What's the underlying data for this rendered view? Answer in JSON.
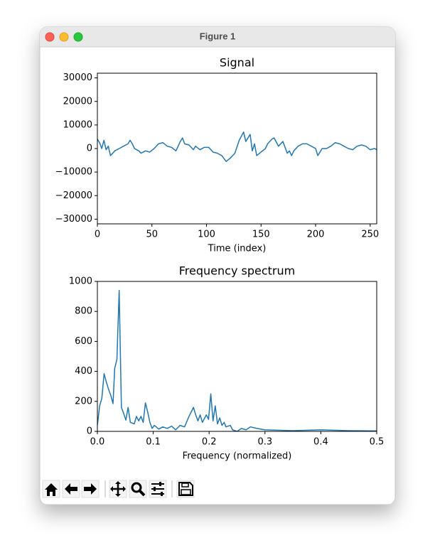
{
  "window": {
    "title": "Figure 1"
  },
  "chart_data": [
    {
      "type": "line",
      "title": "Signal",
      "x_label": "Time (index)",
      "color": "#1f77b4",
      "x": [
        0,
        2,
        4,
        6,
        8,
        10,
        12,
        16,
        20,
        24,
        28,
        30,
        32,
        34,
        38,
        40,
        44,
        48,
        52,
        56,
        60,
        64,
        68,
        72,
        76,
        78,
        80,
        84,
        88,
        90,
        94,
        98,
        102,
        106,
        110,
        114,
        118,
        122,
        126,
        130,
        134,
        136,
        140,
        142,
        144,
        146,
        150,
        154,
        156,
        160,
        162,
        166,
        170,
        174,
        176,
        178,
        180,
        184,
        188,
        192,
        196,
        200,
        202,
        206,
        210,
        214,
        218,
        222,
        226,
        230,
        234,
        238,
        242,
        246,
        250,
        254,
        256
      ],
      "values": [
        4000,
        2500,
        0,
        3500,
        -500,
        1000,
        -3000,
        -1000,
        0,
        1000,
        2000,
        3500,
        2000,
        0,
        -1000,
        -2000,
        -1000,
        -1500,
        0,
        2000,
        2500,
        1000,
        500,
        -1000,
        3000,
        4500,
        2000,
        1500,
        -500,
        1000,
        -500,
        500,
        500,
        -1500,
        -2000,
        -3000,
        -5500,
        -4000,
        -2000,
        3500,
        7000,
        3000,
        6000,
        -1000,
        2000,
        -3000,
        -1500,
        0,
        2000,
        4000,
        4500,
        1000,
        3000,
        -2000,
        -1000,
        -3000,
        -1000,
        1000,
        2000,
        2000,
        1000,
        0,
        -3000,
        0,
        0,
        1000,
        2500,
        2000,
        1000,
        0,
        -500,
        1000,
        1500,
        1000,
        -500,
        0,
        -500
      ],
      "xlim": [
        0,
        256
      ],
      "xticks": [
        0,
        50,
        100,
        150,
        200,
        250
      ],
      "ylim": [
        -32000,
        32000
      ],
      "yticks": [
        {
          "value": -30000,
          "label": "−30000"
        },
        {
          "value": -20000,
          "label": "−20000"
        },
        {
          "value": -10000,
          "label": "−10000"
        },
        0,
        10000,
        20000,
        30000
      ]
    },
    {
      "type": "line",
      "title": "Frequency spectrum",
      "x_label": "Frequency (normalized)",
      "color": "#1f77b4",
      "x": [
        0,
        0.004,
        0.008,
        0.012,
        0.016,
        0.02,
        0.024,
        0.028,
        0.031,
        0.035,
        0.039,
        0.043,
        0.047,
        0.051,
        0.055,
        0.059,
        0.066,
        0.07,
        0.074,
        0.078,
        0.082,
        0.086,
        0.09,
        0.094,
        0.098,
        0.102,
        0.11,
        0.117,
        0.125,
        0.133,
        0.14,
        0.148,
        0.156,
        0.164,
        0.172,
        0.176,
        0.18,
        0.184,
        0.188,
        0.195,
        0.199,
        0.203,
        0.207,
        0.211,
        0.215,
        0.219,
        0.223,
        0.227,
        0.23,
        0.238,
        0.242,
        0.25,
        0.258,
        0.266,
        0.274,
        0.285,
        0.3,
        0.35,
        0.4,
        0.45,
        0.5
      ],
      "values": [
        40,
        170,
        220,
        385,
        330,
        280,
        240,
        185,
        420,
        480,
        940,
        160,
        120,
        75,
        160,
        60,
        50,
        100,
        70,
        100,
        60,
        190,
        130,
        60,
        20,
        40,
        15,
        30,
        20,
        35,
        10,
        40,
        30,
        100,
        160,
        110,
        70,
        110,
        60,
        110,
        80,
        250,
        70,
        170,
        50,
        90,
        40,
        60,
        30,
        40,
        10,
        0,
        20,
        10,
        30,
        20,
        10,
        5,
        10,
        5,
        3
      ],
      "xlim": [
        0,
        0.5
      ],
      "xticks": [
        {
          "value": 0,
          "label": "0.0"
        },
        0.1,
        0.2,
        0.3,
        0.4,
        0.5
      ],
      "ylim": [
        0,
        1000
      ],
      "yticks": [
        0,
        200,
        400,
        600,
        800,
        1000
      ]
    }
  ]
}
